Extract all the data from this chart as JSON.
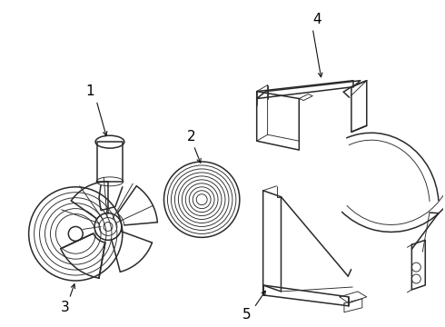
{
  "background_color": "#ffffff",
  "line_color": "#2a2a2a",
  "label_color": "#000000",
  "figsize": [
    4.9,
    3.6
  ],
  "dpi": 100,
  "label_fontsize": 11,
  "arrow_color": "#111111",
  "lw_main": 1.1,
  "lw_thin": 0.65,
  "lw_thick": 1.6
}
